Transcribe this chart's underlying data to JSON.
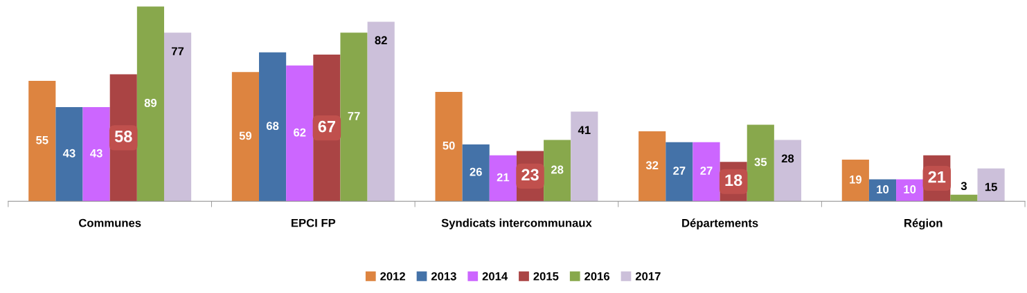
{
  "chart_data": {
    "type": "bar",
    "categories": [
      "Communes",
      "EPCI FP",
      "Syndicats intercommunaux",
      "Départements",
      "Région"
    ],
    "series": [
      {
        "name": "2012",
        "color": "#dd8440",
        "values": [
          55,
          59,
          50,
          32,
          19
        ]
      },
      {
        "name": "2013",
        "color": "#4472a8",
        "values": [
          43,
          68,
          26,
          27,
          10
        ]
      },
      {
        "name": "2014",
        "color": "#cc66ff",
        "values": [
          43,
          62,
          21,
          27,
          10
        ]
      },
      {
        "name": "2015",
        "color": "#aa4444",
        "values": [
          58,
          67,
          23,
          18,
          21
        ]
      },
      {
        "name": "2016",
        "color": "#88a84c",
        "values": [
          89,
          77,
          28,
          35,
          3
        ]
      },
      {
        "name": "2017",
        "color": "#ccc0da",
        "values": [
          77,
          82,
          41,
          28,
          15
        ]
      }
    ],
    "data_labels": true,
    "legend": "bottom",
    "grid": false
  }
}
